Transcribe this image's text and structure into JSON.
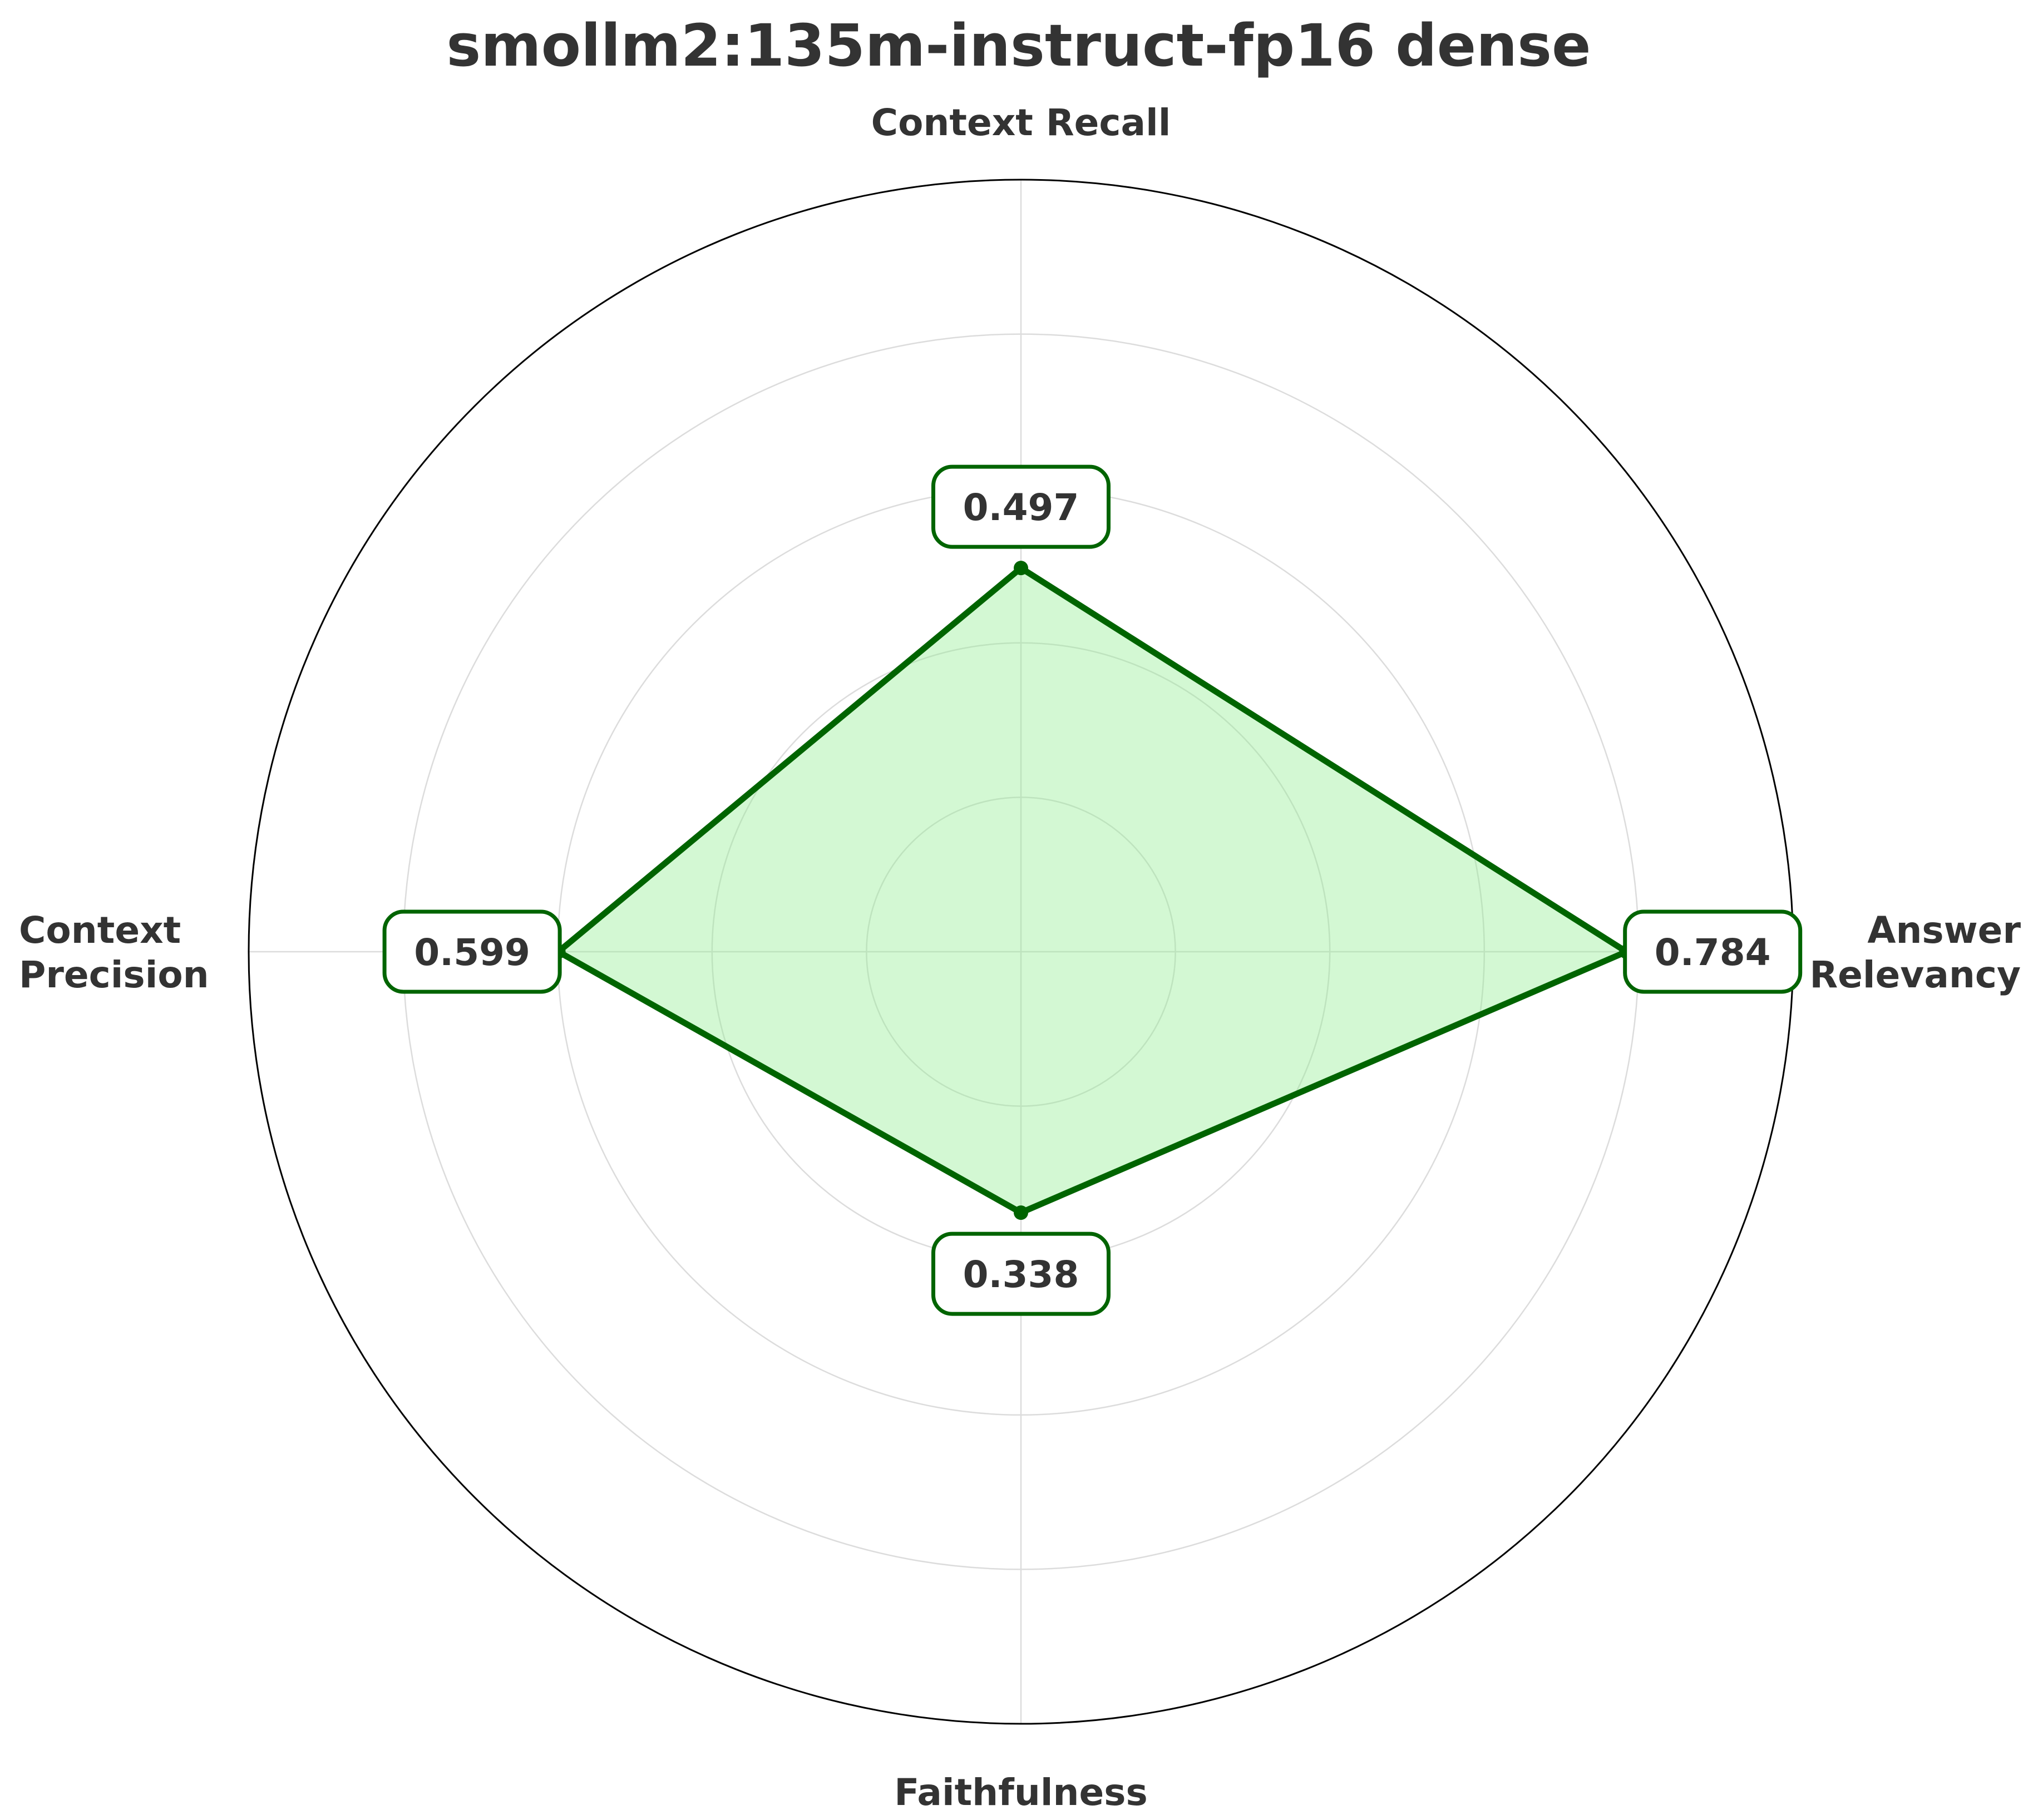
{
  "chart_data": {
    "type": "radar",
    "title": "smollm2:135m-instruct-fp16 dense",
    "axes": [
      {
        "label": "Answer Relevancy",
        "lines": [
          "Answer",
          "Relevancy"
        ],
        "value": 0.784,
        "value_label": "0.784"
      },
      {
        "label": "Context Recall",
        "lines": [
          "Context Recall"
        ],
        "value": 0.497,
        "value_label": "0.497"
      },
      {
        "label": "Context Precision",
        "lines": [
          "Context",
          "Precision"
        ],
        "value": 0.599,
        "value_label": "0.599"
      },
      {
        "label": "Faithfulness",
        "lines": [
          "Faithfulness"
        ],
        "value": 0.338,
        "value_label": "0.338"
      }
    ],
    "rlim": [
      0,
      1
    ],
    "grid_levels": [
      0.2,
      0.4,
      0.6,
      0.8
    ],
    "grid": true,
    "legend": "none"
  },
  "colors": {
    "line": "#006400",
    "fill": "#90ee90",
    "text": "#333333",
    "grid": "#dcdcdc",
    "outer_circle": "#000000"
  }
}
